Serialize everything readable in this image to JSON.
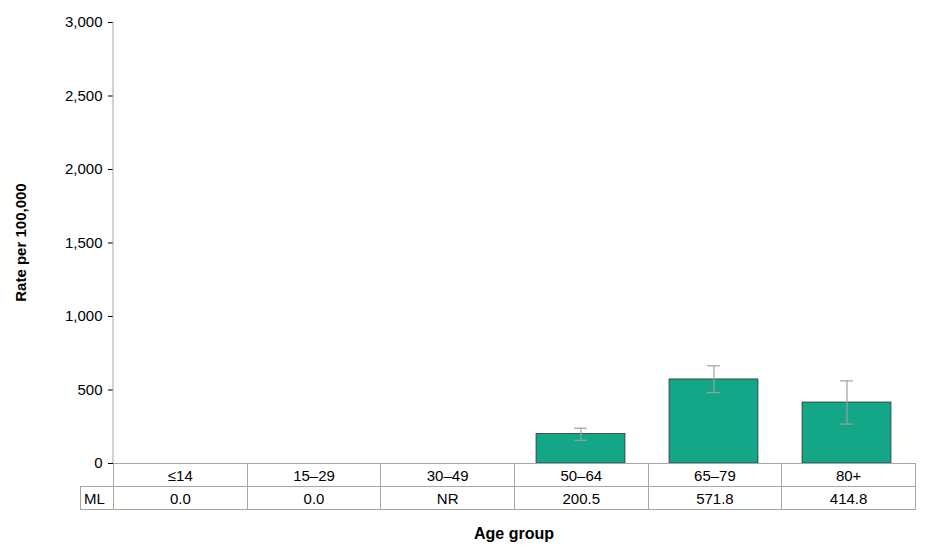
{
  "chart_data": {
    "type": "bar",
    "x_label": "Age group",
    "y_label": "Rate per 100,000",
    "categories": [
      "≤14",
      "15–29",
      "30–49",
      "50–64",
      "65–79",
      "80+"
    ],
    "series": [
      {
        "name": "ML",
        "color": "#13a687",
        "values": [
          0.0,
          0.0,
          null,
          200.5,
          571.8,
          414.8
        ],
        "value_labels": [
          "0.0",
          "0.0",
          "NR",
          "200.5",
          "571.8",
          "414.8"
        ],
        "error_low": [
          null,
          null,
          null,
          158,
          482,
          268
        ],
        "error_high": [
          null,
          null,
          null,
          240,
          665,
          562
        ]
      }
    ],
    "ylim": [
      0,
      3000
    ],
    "yticks": [
      0,
      500,
      {
        "value": 1000,
        "label": "1,000"
      },
      {
        "value": 1500,
        "label": "1,500"
      },
      {
        "value": 2000,
        "label": "2,000"
      },
      {
        "value": 2500,
        "label": "2,500"
      },
      {
        "value": 3000,
        "label": "3,000"
      }
    ],
    "grid": false
  }
}
